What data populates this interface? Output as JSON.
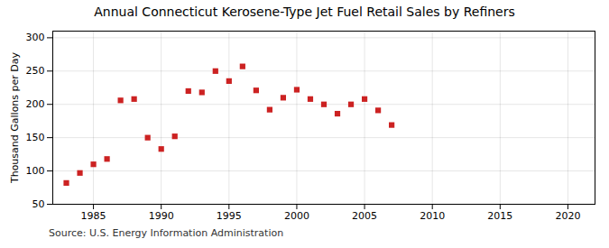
{
  "chart_data": {
    "type": "scatter",
    "title": "Annual Connecticut Kerosene-Type Jet Fuel Retail Sales by Refiners",
    "ylabel": "Thousand Gallons per Day",
    "annotations": [
      "Source: U.S. Energy Information Administration"
    ],
    "x": [
      1983,
      1984,
      1985,
      1986,
      1987,
      1988,
      1989,
      1990,
      1991,
      1992,
      1993,
      1994,
      1995,
      1996,
      1997,
      1998,
      1999,
      2000,
      2001,
      2002,
      2003,
      2004,
      2005,
      2006,
      2007
    ],
    "values": [
      82,
      97,
      110,
      118,
      206,
      208,
      150,
      133,
      152,
      220,
      218,
      250,
      235,
      257,
      221,
      192,
      210,
      222,
      208,
      200,
      186,
      200,
      208,
      191,
      169
    ],
    "color": "#cc2222",
    "marker": "square",
    "xlim": [
      1982,
      2022
    ],
    "xticks": [
      1985,
      1990,
      1995,
      2000,
      2005,
      2010,
      2015,
      2020
    ],
    "ylim": [
      50,
      310
    ],
    "yticks": [
      50,
      100,
      150,
      200,
      250,
      300
    ],
    "grid": true
  }
}
